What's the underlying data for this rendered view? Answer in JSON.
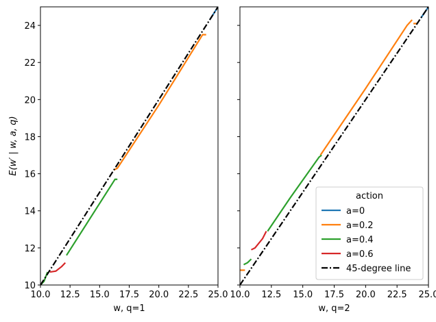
{
  "chart_data": [
    {
      "type": "line",
      "xlabel": "w, q=1",
      "ylabel": "E(w′ | w, a, q)",
      "xlim": [
        10,
        25
      ],
      "ylim": [
        10,
        25
      ],
      "xticks": [
        {
          "value": 10,
          "label": "10.0"
        },
        12.5,
        {
          "value": 15,
          "label": "15.0"
        },
        17.5,
        {
          "value": 20,
          "label": "20.0"
        },
        22.5,
        {
          "value": 25,
          "label": "25.0"
        }
      ],
      "yticks": [
        10,
        12,
        14,
        16,
        18,
        20,
        22,
        24
      ],
      "show_ytick_labels": true,
      "series": [
        {
          "name": "a=0",
          "color": "#1f77b4",
          "x": [
            24.3,
            25
          ],
          "values": [
            24.3,
            25
          ]
        },
        {
          "name": "a=0.2",
          "color": "#ff7f0e",
          "x": [
            16.2,
            16.5,
            20,
            23.7,
            24
          ],
          "values": [
            16.2,
            16.3,
            19.7,
            23.5,
            23.5
          ]
        },
        {
          "name": "a=0.4",
          "color": "#2ca02c",
          "x": [
            10,
            10.3,
            10.6,
            null,
            12.2,
            14,
            16.3,
            16.5
          ],
          "values": [
            10,
            10.2,
            10.7,
            null,
            11.6,
            13.4,
            15.7,
            15.7
          ]
        },
        {
          "name": "a=0.6",
          "color": "#d62728",
          "x": [
            10.8,
            11.3,
            11.8,
            12.1
          ],
          "values": [
            10.7,
            10.75,
            11.0,
            11.2
          ]
        },
        {
          "name": "45-degree line",
          "color": "#000000",
          "dash": true,
          "x": [
            10,
            25
          ],
          "values": [
            10,
            25
          ]
        }
      ]
    },
    {
      "type": "line",
      "xlabel": "w, q=2",
      "xlim": [
        10,
        25
      ],
      "ylim": [
        10,
        25
      ],
      "xticks": [
        {
          "value": 10,
          "label": "10.0"
        },
        12.5,
        {
          "value": 15,
          "label": "15.0"
        },
        17.5,
        {
          "value": 20,
          "label": "20.0"
        },
        22.5,
        {
          "value": 25,
          "label": "25.0"
        }
      ],
      "yticks": [
        10,
        12,
        14,
        16,
        18,
        20,
        22,
        24
      ],
      "show_ytick_labels": false,
      "legend": "lower right",
      "legend_title": "action",
      "series": [
        {
          "name": "a=0",
          "color": "#1f77b4",
          "x": [
            24.4,
            25
          ],
          "values": [
            24.4,
            25
          ]
        },
        {
          "name": "a=0.2",
          "color": "#ff7f0e",
          "x": [
            10,
            10.4,
            null,
            16.4,
            20,
            23.3,
            23.7,
            null,
            23.8,
            24.1
          ],
          "values": [
            10.8,
            10.8,
            null,
            17.0,
            20.6,
            24.0,
            24.3,
            null,
            24.1,
            24.1
          ]
        },
        {
          "name": "a=0.4",
          "color": "#2ca02c",
          "x": [
            10.3,
            10.6,
            10.9,
            null,
            12.2,
            14,
            16.3,
            16.5
          ],
          "values": [
            11.1,
            11.2,
            11.4,
            null,
            12.9,
            14.7,
            16.9,
            17.0
          ]
        },
        {
          "name": "a=0.6",
          "color": "#d62728",
          "x": [
            10.9,
            11.2,
            11.8,
            12.1
          ],
          "values": [
            11.9,
            12.0,
            12.5,
            12.9
          ]
        },
        {
          "name": "45-degree line",
          "color": "#000000",
          "dash": true,
          "x": [
            10,
            25
          ],
          "values": [
            10,
            25
          ]
        }
      ]
    }
  ]
}
